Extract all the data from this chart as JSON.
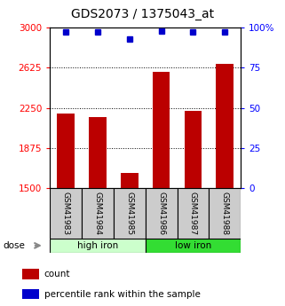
{
  "title": "GDS2073 / 1375043_at",
  "samples": [
    "GSM41983",
    "GSM41984",
    "GSM41985",
    "GSM41986",
    "GSM41987",
    "GSM41988"
  ],
  "bar_values": [
    2195,
    2165,
    1645,
    2590,
    2225,
    2660
  ],
  "percentile_values": [
    97,
    97,
    93,
    98,
    97,
    97
  ],
  "ylim_left": [
    1500,
    3000
  ],
  "ylim_right": [
    0,
    100
  ],
  "yticks_left": [
    1500,
    1875,
    2250,
    2625,
    3000
  ],
  "yticks_right": [
    0,
    25,
    50,
    75,
    100
  ],
  "bar_color": "#bb0000",
  "dot_color": "#0000cc",
  "group1_label": "high iron",
  "group2_label": "low iron",
  "group1_color": "#ccffcc",
  "group2_color": "#33dd33",
  "sample_box_color": "#cccccc",
  "dose_label": "dose",
  "legend_count": "count",
  "legend_percentile": "percentile rank within the sample",
  "title_fontsize": 10,
  "tick_fontsize": 7.5,
  "label_fontsize": 7.5
}
